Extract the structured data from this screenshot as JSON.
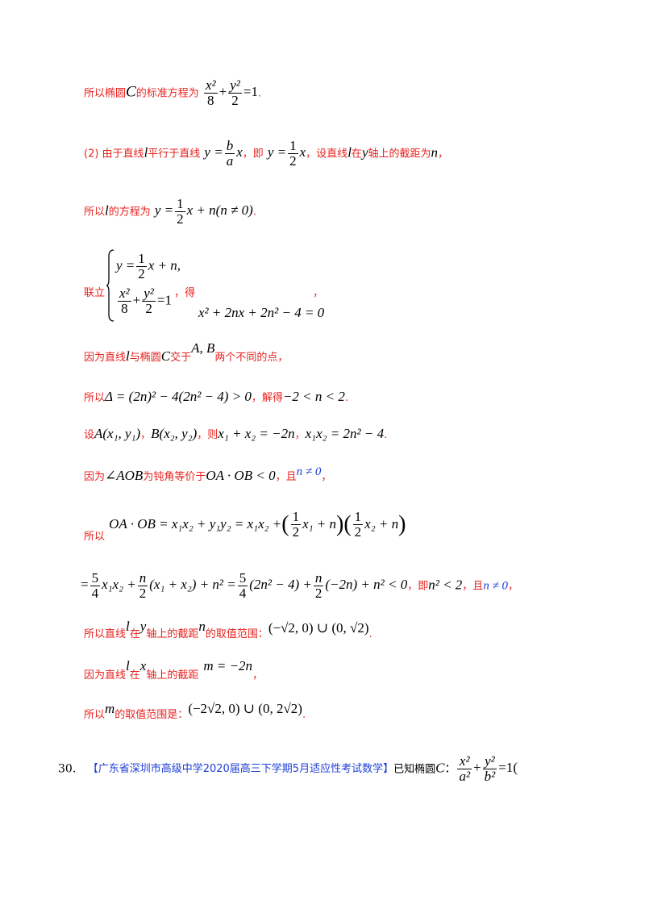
{
  "l1": {
    "t1": "所以椭圆",
    "C": "C",
    "t2": "的标准方程为",
    "eq_rest": "=1",
    "period": "."
  },
  "l2": {
    "t1": "(2) 由于直线",
    "l": "l",
    "t2": "平行于直线",
    "eq1": "y =",
    "x": "x",
    "t3": "，即",
    "eq2": "y =",
    "t4": "，设直线",
    "t5": "在",
    "y": "y",
    "t6": "轴上的截距为",
    "n": "n",
    "t7": "，"
  },
  "l3": {
    "t1": "所以",
    "t2": "的方程为",
    "eq": "y =",
    "eq_rest": "x + n(n ≠ 0)",
    "period": "."
  },
  "l4": {
    "t1": "联立",
    "row1": "y =",
    "row1_rest": "x + n,",
    "row2_rest": "=1",
    "t2": "，得",
    "result": "x² + 2nx + 2n² − 4 = 0",
    "comma": "，"
  },
  "l5": {
    "t1": "因为直线",
    "t2": "与椭圆",
    "t3": "交于",
    "AB": "A, B",
    "t4": "两个不同的点，"
  },
  "l6": {
    "t1": "所以",
    "eq": "Δ = (2n)² − 4(2n² − 4) > 0",
    "t2": "，解得",
    "sol": "−2 < n < 2",
    "period": "."
  },
  "l7": {
    "t1": "设",
    "A": "A(x₁, y₁)",
    "sep": "，",
    "B": "B(x₂, y₂)",
    "t2": "，则",
    "s1": "x₁ + x₂ = −2n",
    "s2": "x₁x₂ = 2n² − 4",
    "period": "."
  },
  "l8": {
    "t1": "因为",
    "ang": "∠AOB",
    "t2": "为钝角等价于",
    "vec": "OA · OB < 0",
    "t3": "，且",
    "cond": "n ≠ 0",
    "t4": "，"
  },
  "l9": {
    "t1": "所以",
    "eq": "OA · OB = x₁x₂ + y₁y₂ = x₁x₂ +",
    "p1": "x₁ + n",
    "p2": "x₂ + n"
  },
  "l10": {
    "eq1": "x₁x₂ +",
    "eq2": "(x₁ + x₂) + n² =",
    "eq3": "(2n² − 4) +",
    "eq4": "(−2n) + n² < 0",
    "t1": "，即",
    "res": "n² < 2",
    "t2": "，且",
    "cond": "n ≠ 0",
    "t3": "，"
  },
  "l11": {
    "t1": "所以直线",
    "t2": "在",
    "t3": "轴上的截距",
    "t4": "的取值范围：",
    "range": "(−√2, 0) ∪ (0, √2)",
    "period": "."
  },
  "l12": {
    "t1": "因为直线",
    "t2": "在",
    "x": "x",
    "t3": "轴上的截距",
    "eq": "m = −2n",
    "comma": "，"
  },
  "l13": {
    "t1": "所以",
    "m": "m",
    "t2": "的取值范围是：",
    "range": "(−2√2, 0) ∪ (0, 2√2)",
    "period": "."
  },
  "q30": {
    "num": "30.",
    "source": "【广东省深圳市高级中学2020届高三下学期5月适应性考试数学】",
    "text": "已知椭圆",
    "C": "C",
    "colon": "：",
    "eq_rest": "=1(",
    "paren": ""
  },
  "fr": {
    "x2": "x²",
    "y2": "y²",
    "eight": "8",
    "two": "2",
    "b": "b",
    "a": "a",
    "one": "1",
    "a2": "a²",
    "b2": "b²",
    "five": "5",
    "four": "4",
    "n": "n"
  }
}
